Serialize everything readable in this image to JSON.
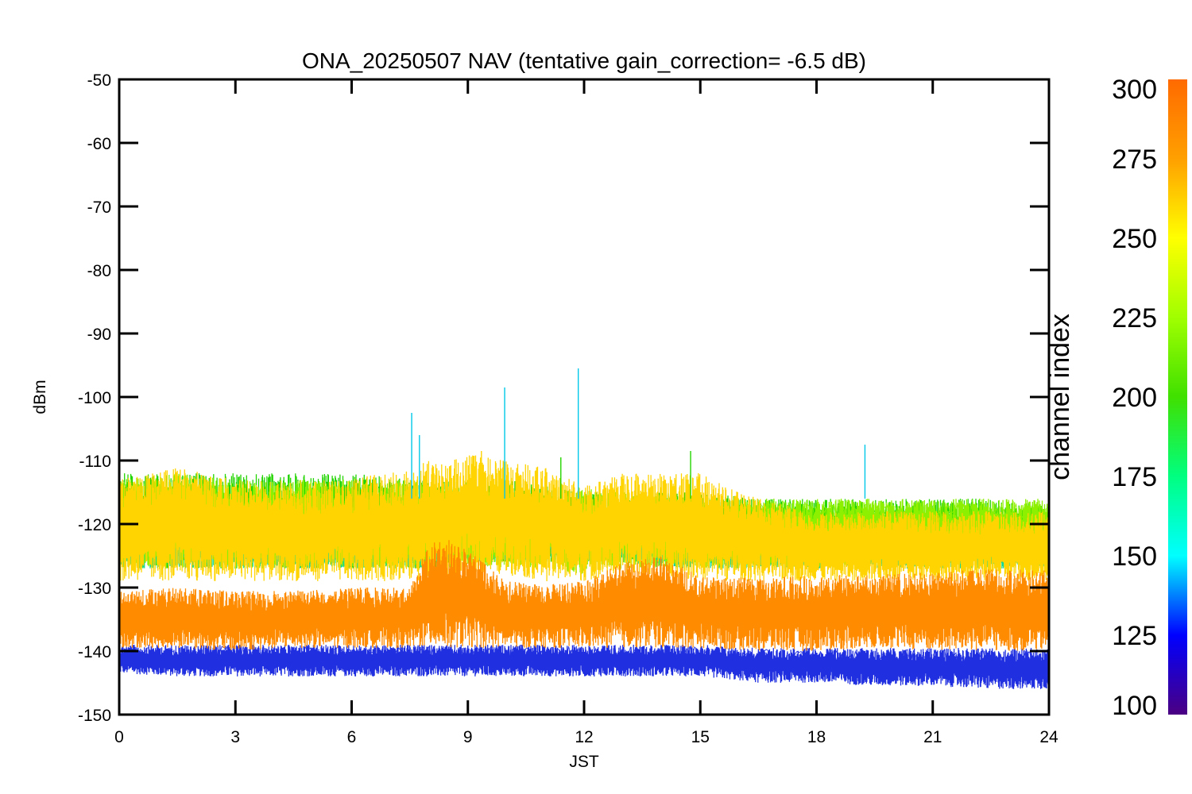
{
  "chart_data": {
    "type": "line",
    "title": "ONA_20250507 NAV (tentative gain_correction= -6.5 dB)",
    "xlabel": "JST",
    "ylabel": "dBm",
    "xlim": [
      0,
      24
    ],
    "ylim": [
      -150,
      -50
    ],
    "xticks": [
      "0",
      "3",
      "6",
      "9",
      "12",
      "15",
      "18",
      "21",
      "24"
    ],
    "yticks": [
      "-50",
      "-60",
      "-70",
      "-80",
      "-90",
      "-100",
      "-110",
      "-120",
      "-130",
      "-140",
      "-150"
    ],
    "grid": false,
    "colorbar": {
      "label": "channel index",
      "range": [
        100,
        300
      ],
      "ticks": [
        "300",
        "275",
        "250",
        "225",
        "200",
        "175",
        "150",
        "125",
        "100"
      ],
      "colormap": [
        "#4b0082",
        "#0000ff",
        "#00ffff",
        "#00ff80",
        "#40e000",
        "#a0ff00",
        "#ffff00",
        "#ffa000",
        "#ff6a00"
      ]
    },
    "series": [
      {
        "channel_index": 290,
        "color": "#ff8c00",
        "hours": [
          0,
          1.5,
          3,
          4.5,
          6,
          7.5,
          8,
          8.5,
          9,
          10,
          11,
          12,
          13,
          14,
          15,
          16.5,
          18,
          19.5,
          21,
          22.5,
          24
        ],
        "dbm_mean": [
          -134.5,
          -134.5,
          -134.5,
          -134.5,
          -134.5,
          -134.5,
          -134,
          -133,
          -134,
          -134.5,
          -134.5,
          -134.5,
          -134,
          -133.5,
          -134.5,
          -134.5,
          -134.5,
          -134.5,
          -134.5,
          -134.5,
          -134.5
        ],
        "dbm_upper": [
          -130.5,
          -130,
          -130.5,
          -130.5,
          -130,
          -130,
          -123,
          -122,
          -124,
          -129,
          -129.5,
          -129,
          -126,
          -125,
          -128,
          -128.5,
          -128,
          -128,
          -127.5,
          -127,
          -127
        ],
        "dbm_lower": [
          -139.5,
          -139.5,
          -140,
          -139.5,
          -139.5,
          -139.5,
          -139.5,
          -139.5,
          -139.5,
          -139.5,
          -139.5,
          -139.5,
          -139.5,
          -139.5,
          -139.5,
          -140,
          -140,
          -139.5,
          -140,
          -140,
          -140
        ]
      },
      {
        "channel_index": 275,
        "color": "#ffd400",
        "hours": [
          0,
          1.5,
          3,
          4.5,
          6,
          7.5,
          8,
          8.5,
          9,
          10,
          11,
          12,
          13,
          14,
          15,
          16.5,
          18,
          19.5,
          21,
          22.5,
          24
        ],
        "dbm_mean": [
          -119,
          -118,
          -119,
          -119,
          -119,
          -118,
          -117,
          -116,
          -116,
          -117,
          -118,
          -119,
          -119,
          -119,
          -120,
          -121,
          -122,
          -123,
          -123,
          -124,
          -124
        ],
        "dbm_upper": [
          -113,
          -111,
          -113,
          -113,
          -113,
          -111,
          -110,
          -110,
          -109,
          -110,
          -111,
          -114,
          -112,
          -112,
          -112,
          -116,
          -118,
          -118,
          -118,
          -118,
          -118
        ],
        "dbm_lower": [
          -129,
          -129,
          -129,
          -129,
          -129,
          -129,
          -129,
          -129,
          -128,
          -128,
          -129,
          -129,
          -128,
          -128,
          -129,
          -129,
          -129,
          -129,
          -129,
          -129,
          -129
        ]
      },
      {
        "channel_index": 250,
        "color": "#8cf000",
        "hours": [
          0,
          1.5,
          3,
          4.5,
          6,
          7.5,
          8,
          8.5,
          9,
          10,
          11,
          12,
          13,
          14,
          15,
          16.5,
          18,
          19.5,
          21,
          22.5,
          24
        ],
        "dbm_mean": [
          -118,
          -118,
          -118,
          -118,
          -118,
          -118,
          -118,
          -118,
          -118,
          -118,
          -118,
          -118,
          -118,
          -118,
          -118,
          -118,
          -118,
          -118,
          -118,
          -118,
          -118
        ],
        "dbm_upper": [
          -113,
          -112,
          -113,
          -113,
          -113,
          -113,
          -113,
          -114,
          -114,
          -115,
          -115,
          -114,
          -115,
          -115,
          -116,
          -116,
          -116,
          -116,
          -116,
          -116,
          -116
        ],
        "dbm_lower": [
          -127,
          -127,
          -127,
          -127,
          -127,
          -127,
          -127,
          -127,
          -127,
          -127,
          -127,
          -128,
          -127,
          -127,
          -127,
          -127,
          -127,
          -126,
          -126,
          -126,
          -126
        ]
      },
      {
        "channel_index": 230,
        "color": "#22d400",
        "hours": [
          0,
          1.5,
          3,
          4.5,
          6,
          7.5,
          8,
          8.5,
          9,
          10,
          11,
          12,
          13,
          14,
          15,
          16.5,
          18,
          19.5,
          21,
          22.5,
          24
        ],
        "dbm_mean": [
          -120,
          -120,
          -120,
          -120,
          -120,
          -121,
          -121,
          -120,
          -120,
          -119,
          -119,
          -118,
          -119,
          -119,
          -119,
          -119,
          -119,
          -119,
          -119,
          -120,
          -120
        ],
        "dbm_upper": [
          -112,
          -112,
          -112,
          -112,
          -112,
          -113,
          -113,
          -113,
          -113,
          -113,
          -114,
          -115,
          -115,
          -115,
          -115,
          -116,
          -116,
          -116,
          -116,
          -116,
          -117
        ],
        "dbm_lower": [
          -127,
          -127,
          -127,
          -127,
          -127,
          -127,
          -127,
          -127,
          -126,
          -126,
          -126,
          -126,
          -126,
          -126,
          -126,
          -126,
          -126,
          -126,
          -126,
          -126,
          -126
        ]
      },
      {
        "channel_index": 205,
        "color": "#18d890",
        "hours": [
          0,
          1.5,
          3,
          4.5,
          6,
          7.5,
          8,
          8.5,
          9,
          10,
          11,
          12,
          13,
          14,
          15,
          16.5,
          18,
          19.5,
          21,
          22.5,
          24
        ],
        "dbm_mean": [
          -124,
          -124,
          -124,
          -124,
          -124.5,
          -125,
          -124,
          -123,
          -123,
          -123,
          -123,
          -123,
          -124,
          -125,
          -125,
          -124,
          -124,
          -124,
          -124,
          -124,
          -124
        ],
        "dbm_upper": [
          -121,
          -121,
          -121,
          -121,
          -121,
          -122,
          -122,
          -121,
          -121,
          -120,
          -120,
          -120,
          -121,
          -122,
          -122,
          -121,
          -121,
          -121,
          -121,
          -122,
          -122
        ],
        "dbm_lower": [
          -127,
          -127,
          -127,
          -127,
          -127,
          -127,
          -127,
          -126,
          -126,
          -126,
          -126,
          -126,
          -126,
          -127,
          -127,
          -127,
          -127,
          -127,
          -127,
          -127,
          -127
        ]
      },
      {
        "channel_index": 140,
        "color": "#2030e0",
        "hours": [
          0,
          1.5,
          3,
          4.5,
          6,
          7.5,
          8,
          8.5,
          9,
          10,
          11,
          12,
          13,
          14,
          15,
          16.5,
          18,
          19.5,
          21,
          22.5,
          24
        ],
        "dbm_mean": [
          -140.5,
          -140.5,
          -140.5,
          -140.5,
          -140.5,
          -140.5,
          -140.5,
          -140.5,
          -140.5,
          -140.5,
          -140.5,
          -140.5,
          -140.5,
          -140.5,
          -140.5,
          -141,
          -141,
          -141,
          -141,
          -141,
          -141
        ],
        "dbm_upper": [
          -139,
          -139,
          -139,
          -139,
          -139,
          -139,
          -139,
          -139,
          -139,
          -139,
          -139,
          -139,
          -139,
          -139,
          -139,
          -139.5,
          -139.5,
          -139.5,
          -139.5,
          -139.5,
          -139.5
        ],
        "dbm_lower": [
          -143.5,
          -144,
          -144,
          -144,
          -144,
          -144,
          -144,
          -144,
          -144,
          -144,
          -144,
          -144,
          -144,
          -144,
          -144,
          -145,
          -145,
          -145.5,
          -145.5,
          -146,
          -146
        ]
      }
    ],
    "spikes": [
      {
        "hour": 7.55,
        "dbm": -102.5,
        "color": "#00c8e8"
      },
      {
        "hour": 7.75,
        "dbm": -106,
        "color": "#00c8e8"
      },
      {
        "hour": 9.95,
        "dbm": -98.5,
        "color": "#00c8e8"
      },
      {
        "hour": 11.85,
        "dbm": -95.5,
        "color": "#00c8e8"
      },
      {
        "hour": 14.75,
        "dbm": -108.5,
        "color": "#22d400"
      },
      {
        "hour": 19.25,
        "dbm": -107.5,
        "color": "#00c8e8"
      },
      {
        "hour": 11.4,
        "dbm": -109.5,
        "color": "#22d400"
      },
      {
        "hour": 9.35,
        "dbm": -108.5,
        "color": "#ffd400"
      }
    ]
  }
}
